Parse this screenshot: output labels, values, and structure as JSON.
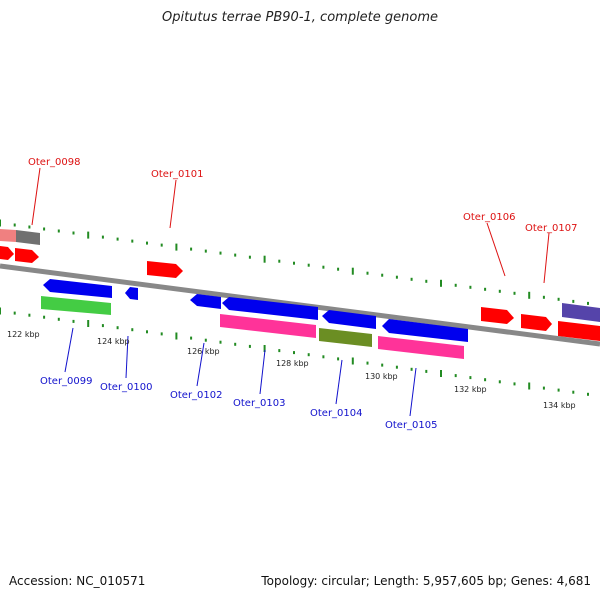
{
  "title": "Opitutus terrae PB90-1, complete genome",
  "footer": {
    "accession": "Accession: NC_010571",
    "summary": "Topology: circular; Length: 5,957,605 bp; Genes: 4,681"
  },
  "scale_labels": [
    "122 kbp",
    "124 kbp",
    "126 kbp",
    "128 kbp",
    "130 kbp",
    "132 kbp",
    "134 kbp"
  ],
  "genes_top": [
    {
      "id": "oter-0098",
      "label": "Oter_0098"
    },
    {
      "id": "oter-0101",
      "label": "Oter_0101"
    },
    {
      "id": "oter-0106",
      "label": "Oter_0106"
    },
    {
      "id": "oter-0107",
      "label": "Oter_0107"
    }
  ],
  "genes_bottom": [
    {
      "id": "oter-0099",
      "label": "Oter_0099"
    },
    {
      "id": "oter-0100",
      "label": "Oter_0100"
    },
    {
      "id": "oter-0102",
      "label": "Oter_0102"
    },
    {
      "id": "oter-0103",
      "label": "Oter_0103"
    },
    {
      "id": "oter-0104",
      "label": "Oter_0104"
    },
    {
      "id": "oter-0105",
      "label": "Oter_0105"
    }
  ],
  "colors": {
    "forward_cds": "#ff0000",
    "reverse_cds": "#0000ee",
    "pink_feature": "#ff3399",
    "green_feature": "#44cc44",
    "olive_feature": "#6b8e23",
    "purple_feature": "#5544aa",
    "grey_feature": "#707070",
    "salmon_feature": "#f08080",
    "tick": "#228b22",
    "backbone": "#888888"
  }
}
